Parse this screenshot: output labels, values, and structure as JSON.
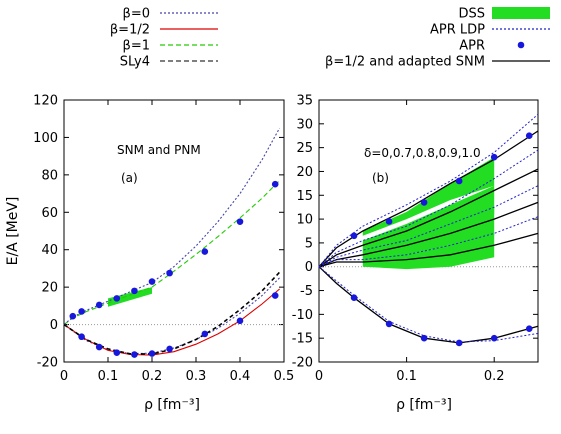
{
  "chart_data": [
    {
      "type": "line",
      "panel_label": "(a)",
      "annotation": "SNM and PNM",
      "xlabel": "ρ [fm⁻³]",
      "ylabel": "E/A [MeV]",
      "xlim": [
        0,
        0.5
      ],
      "ylim": [
        -20,
        120
      ],
      "x_ticks": [
        "0",
        "0.1",
        "0.2",
        "0.3",
        "0.4",
        "0.5"
      ],
      "y_ticks": [
        "-20",
        "0",
        "20",
        "40",
        "60",
        "80",
        "100",
        "120"
      ],
      "grid": false,
      "legend_position": "top-left, outside plot",
      "legend": [
        {
          "label": "β=0",
          "color": "#4444aa",
          "style": "dotted"
        },
        {
          "label": "β=1/2",
          "color": "#dd0000",
          "style": "solid"
        },
        {
          "label": "β=1",
          "color": "#22cc00",
          "style": "dashed"
        },
        {
          "label": "SLy4",
          "color": "#555555",
          "style": "dashed"
        }
      ],
      "series": [
        {
          "group": "PNM",
          "kind": "beta1",
          "color": "#22cc00",
          "x": [
            0,
            0.02,
            0.05,
            0.1,
            0.15,
            0.2,
            0.25,
            0.3,
            0.35,
            0.4,
            0.45,
            0.49
          ],
          "y": [
            0,
            3.5,
            6.8,
            11.5,
            15.8,
            20,
            28.5,
            37.5,
            47,
            57,
            67.5,
            77
          ]
        },
        {
          "group": "PNM",
          "kind": "beta0",
          "color": "#4444aa",
          "x": [
            0,
            0.02,
            0.05,
            0.1,
            0.15,
            0.2,
            0.25,
            0.3,
            0.35,
            0.4,
            0.45,
            0.49
          ],
          "y": [
            0,
            4,
            7.5,
            12.5,
            17.5,
            22.5,
            31,
            42,
            55,
            70,
            88,
            105
          ]
        },
        {
          "group": "SNM",
          "kind": "beta0",
          "color": "#4444aa",
          "x": [
            0,
            0.05,
            0.1,
            0.15,
            0.2,
            0.25,
            0.3,
            0.35,
            0.4,
            0.45,
            0.49
          ],
          "y": [
            0,
            -8.5,
            -13.5,
            -15.5,
            -15.3,
            -12.5,
            -8,
            -2,
            6,
            15.5,
            25
          ]
        },
        {
          "group": "SNM",
          "kind": "beta_half",
          "color": "#dd0000",
          "x": [
            0,
            0.05,
            0.1,
            0.15,
            0.2,
            0.25,
            0.3,
            0.35,
            0.4,
            0.45,
            0.49
          ],
          "y": [
            0,
            -8,
            -13.8,
            -16,
            -16.3,
            -14.5,
            -10.5,
            -5,
            2,
            11,
            19
          ]
        },
        {
          "group": "SNM",
          "kind": "sly4",
          "color": "#000000",
          "x": [
            0,
            0.05,
            0.1,
            0.15,
            0.2,
            0.25,
            0.3,
            0.35,
            0.4,
            0.45,
            0.49
          ],
          "y": [
            0,
            -8,
            -13,
            -15.6,
            -15.7,
            -13,
            -8,
            -1,
            8,
            18,
            28
          ]
        }
      ],
      "band": {
        "color": "#22dd22",
        "x": [
          0.1,
          0.2
        ],
        "y_lower": [
          9.5,
          16.5
        ],
        "y_upper": [
          14,
          20
        ]
      },
      "points": {
        "label": "APR",
        "color": "#1818dd",
        "pnm": {
          "x": [
            0.02,
            0.04,
            0.08,
            0.12,
            0.16,
            0.2,
            0.24,
            0.32,
            0.4,
            0.48
          ],
          "y": [
            4.5,
            7,
            10.5,
            14,
            18,
            23,
            27.5,
            39,
            55,
            75
          ]
        },
        "snm": {
          "x": [
            0.04,
            0.08,
            0.12,
            0.16,
            0.2,
            0.24,
            0.32,
            0.4,
            0.48
          ],
          "y": [
            -6.5,
            -12,
            -15,
            -16,
            -15.5,
            -13,
            -5,
            2,
            15.5
          ]
        }
      }
    },
    {
      "type": "line",
      "panel_label": "(b)",
      "annotation": "δ=0,0.7,0.8,0.9,1.0",
      "xlabel": "ρ [fm⁻³]",
      "ylabel": "",
      "xlim": [
        0,
        0.25
      ],
      "ylim": [
        -20,
        35
      ],
      "x_ticks": [
        "0",
        "0.1",
        "0.2"
      ],
      "y_ticks": [
        "-20",
        "-15",
        "-10",
        "-5",
        "0",
        "5",
        "10",
        "15",
        "20",
        "25",
        "30",
        "35"
      ],
      "grid": false,
      "legend_position": "top-right, outside plot",
      "legend": [
        {
          "label": "DSS",
          "color": "#22dd22",
          "style": "band"
        },
        {
          "label": "APR LDP",
          "color": "#2222cc",
          "style": "dotted"
        },
        {
          "label": "APR",
          "color": "#1818dd",
          "style": "point"
        },
        {
          "label": "β=1/2 and adapted SNM",
          "color": "#000000",
          "style": "solid"
        }
      ],
      "delta_values": [
        0,
        0.7,
        0.8,
        0.9,
        1.0
      ],
      "bands": [
        {
          "x": [
            0.05,
            0.1,
            0.15,
            0.2
          ],
          "y_lower": [
            6.5,
            10,
            14,
            17
          ],
          "y_upper": [
            7.5,
            11.5,
            17.5,
            23
          ]
        },
        {
          "x": [
            0.05,
            0.1,
            0.15,
            0.2
          ],
          "y_lower": [
            3,
            5,
            7.5,
            11
          ],
          "y_upper": [
            5.5,
            9,
            13,
            17
          ]
        },
        {
          "x": [
            0.05,
            0.1,
            0.15,
            0.2
          ],
          "y_lower": [
            1.5,
            2.5,
            4.5,
            6.5
          ],
          "y_upper": [
            3.5,
            6,
            9,
            12.5
          ]
        },
        {
          "x": [
            0.05,
            0.1,
            0.15,
            0.2
          ],
          "y_lower": [
            0,
            -0.5,
            0,
            2
          ],
          "y_upper": [
            2,
            2.5,
            4.5,
            7
          ]
        }
      ],
      "series": [
        {
          "kind": "black",
          "x": [
            0,
            0.02,
            0.05,
            0.1,
            0.15,
            0.2,
            0.25
          ],
          "y": [
            0,
            4,
            7.5,
            12,
            17.5,
            22.5,
            28.5
          ]
        },
        {
          "kind": "black",
          "x": [
            0,
            0.02,
            0.05,
            0.1,
            0.15,
            0.2,
            0.25
          ],
          "y": [
            0,
            2.5,
            4.5,
            7.5,
            11.5,
            16,
            20.5
          ]
        },
        {
          "kind": "black",
          "x": [
            0,
            0.02,
            0.05,
            0.1,
            0.15,
            0.2,
            0.25
          ],
          "y": [
            0,
            1.5,
            2.5,
            4.5,
            7,
            10,
            13.5
          ]
        },
        {
          "kind": "black",
          "x": [
            0,
            0.02,
            0.05,
            0.1,
            0.15,
            0.2,
            0.25
          ],
          "y": [
            0,
            1,
            1,
            1.5,
            2.5,
            4.5,
            7
          ]
        },
        {
          "kind": "black",
          "x": [
            0,
            0.02,
            0.04,
            0.08,
            0.12,
            0.16,
            0.2,
            0.25
          ],
          "y": [
            0,
            -3.5,
            -6.5,
            -12,
            -15,
            -16,
            -15,
            -12.5
          ]
        },
        {
          "kind": "dotted",
          "x": [
            0,
            0.02,
            0.05,
            0.1,
            0.15,
            0.2,
            0.25
          ],
          "y": [
            0,
            4.5,
            8.5,
            13,
            18,
            24,
            32
          ]
        },
        {
          "kind": "dotted",
          "x": [
            0,
            0.02,
            0.05,
            0.1,
            0.15,
            0.2,
            0.25
          ],
          "y": [
            0,
            3,
            5.5,
            8.5,
            13,
            18.5,
            24.5
          ]
        },
        {
          "kind": "dotted",
          "x": [
            0,
            0.02,
            0.05,
            0.1,
            0.15,
            0.2,
            0.25
          ],
          "y": [
            0,
            2,
            3.5,
            5.5,
            9,
            12.5,
            17
          ]
        },
        {
          "kind": "dotted",
          "x": [
            0,
            0.02,
            0.05,
            0.1,
            0.15,
            0.2,
            0.25
          ],
          "y": [
            0,
            1.5,
            1.5,
            2.5,
            4.5,
            7,
            10.5
          ]
        },
        {
          "kind": "dotted",
          "x": [
            0,
            0.02,
            0.04,
            0.08,
            0.12,
            0.16,
            0.2,
            0.25
          ],
          "y": [
            0,
            -3,
            -6,
            -11.5,
            -14.5,
            -15.8,
            -15.5,
            -14
          ]
        }
      ],
      "points": {
        "label": "APR",
        "color": "#1818dd",
        "pnm": {
          "x": [
            0.04,
            0.08,
            0.12,
            0.16,
            0.2,
            0.24
          ],
          "y": [
            6.5,
            9.5,
            13.5,
            18,
            23,
            27.5
          ]
        },
        "snm": {
          "x": [
            0.04,
            0.08,
            0.12,
            0.16,
            0.2,
            0.24
          ],
          "y": [
            -6.5,
            -12,
            -15,
            -16,
            -15,
            -13
          ]
        }
      }
    }
  ]
}
